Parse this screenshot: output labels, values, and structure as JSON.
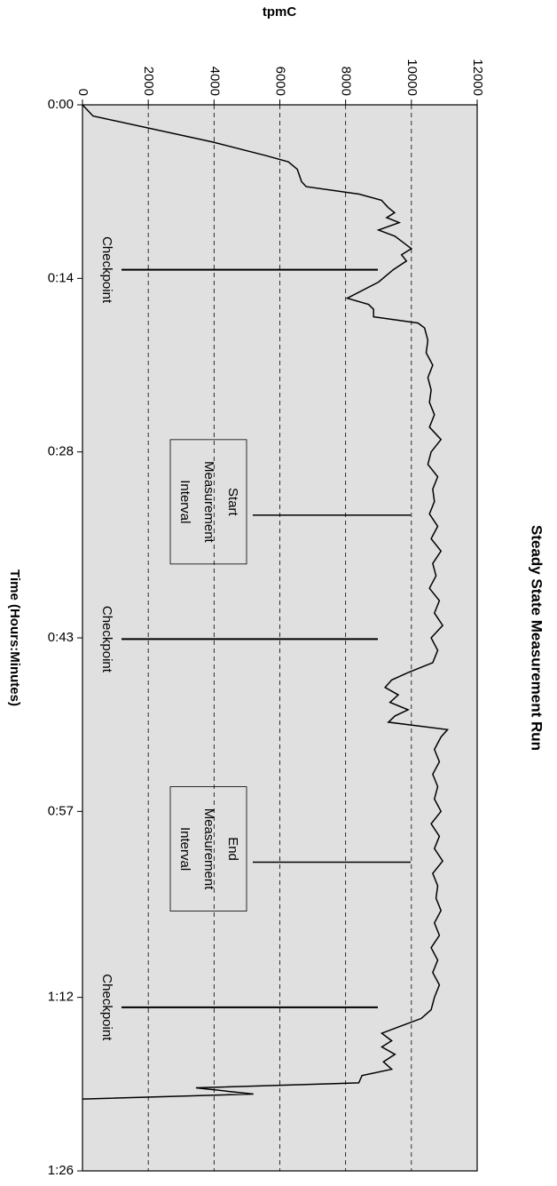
{
  "chart_data": {
    "type": "line",
    "title": "Steady State Measurement Run",
    "x_label": "Time (Hours:Minutes)",
    "y_label": "tpmC",
    "xlim": [
      0,
      86
    ],
    "xticks": [
      {
        "value": 0,
        "label": "0:00"
      },
      {
        "value": 14,
        "label": "0:14"
      },
      {
        "value": 28,
        "label": "0:28"
      },
      {
        "value": 43,
        "label": "0:43"
      },
      {
        "value": 57,
        "label": "0:57"
      },
      {
        "value": 72,
        "label": "1:12"
      },
      {
        "value": 86,
        "label": "1:26"
      }
    ],
    "ylim": [
      0,
      12000
    ],
    "yticks": [
      0,
      2000,
      4000,
      6000,
      8000,
      10000,
      12000
    ],
    "grid": true,
    "plot_background": "#e0e0e0",
    "series": [
      {
        "color": "#000000",
        "x": [
          0,
          0.9,
          3,
          4.1,
          4.6,
          5.2,
          6.2,
          6.6,
          7.2,
          7.7,
          8.3,
          8.7,
          9.1,
          9.5,
          10.1,
          10.6,
          11.2,
          11.6,
          12.1,
          12.6,
          13.3,
          14.3,
          15.6,
          16.1,
          16.5,
          17.1,
          17.6,
          18,
          19,
          20,
          21,
          22,
          23,
          24,
          25,
          26,
          27,
          28,
          29,
          30,
          31,
          32,
          33,
          34,
          35,
          36,
          37,
          38,
          39,
          40,
          41,
          42,
          43,
          44,
          45,
          45.8,
          46.4,
          47,
          47.6,
          48.2,
          48.8,
          49.3,
          49.8,
          50.4,
          51,
          52,
          53,
          54,
          55,
          56,
          57,
          58,
          59,
          60,
          61,
          62,
          63,
          64,
          65,
          66,
          67,
          68,
          69,
          70,
          71,
          72,
          73,
          73.7,
          74.3,
          74.9,
          75.5,
          76,
          76.6,
          77.2,
          77.8,
          78.3,
          78.9,
          79.3,
          79.8,
          80.2
        ],
        "values": [
          0,
          320,
          3960,
          5580,
          6260,
          6530,
          6660,
          6800,
          8410,
          9090,
          9300,
          9490,
          9250,
          9630,
          9000,
          9500,
          9800,
          10000,
          9700,
          9850,
          9450,
          9000,
          8050,
          8700,
          8850,
          8850,
          10200,
          10400,
          10500,
          10450,
          10650,
          10500,
          10600,
          10550,
          10700,
          10550,
          10900,
          10600,
          10500,
          10800,
          10650,
          10700,
          10550,
          10800,
          10600,
          10900,
          10650,
          10750,
          10550,
          10850,
          10700,
          10950,
          10600,
          10800,
          10650,
          9900,
          9400,
          9200,
          9600,
          9350,
          9900,
          9500,
          9300,
          11100,
          10900,
          10700,
          10850,
          10650,
          10800,
          10700,
          10900,
          10600,
          10850,
          10700,
          10950,
          10650,
          10800,
          10750,
          10900,
          10700,
          10850,
          10600,
          10800,
          10650,
          10850,
          10700,
          10600,
          10300,
          9700,
          9100,
          9400,
          9100,
          9500,
          9150,
          9400,
          8500,
          8400,
          3450,
          5200,
          0
        ]
      }
    ],
    "annotations": [
      {
        "lines": [
          "Checkpoint"
        ],
        "x": 13.3,
        "boxed": false
      },
      {
        "lines": [
          "Start",
          "Measurement",
          "Interval"
        ],
        "x": 33.1,
        "boxed": true
      },
      {
        "lines": [
          "Checkpoint"
        ],
        "x": 43.1,
        "boxed": false
      },
      {
        "lines": [
          "End",
          "Measurement",
          "Interval"
        ],
        "x": 61.1,
        "boxed": true
      },
      {
        "lines": [
          "Checkpoint"
        ],
        "x": 72.8,
        "boxed": false
      }
    ]
  }
}
